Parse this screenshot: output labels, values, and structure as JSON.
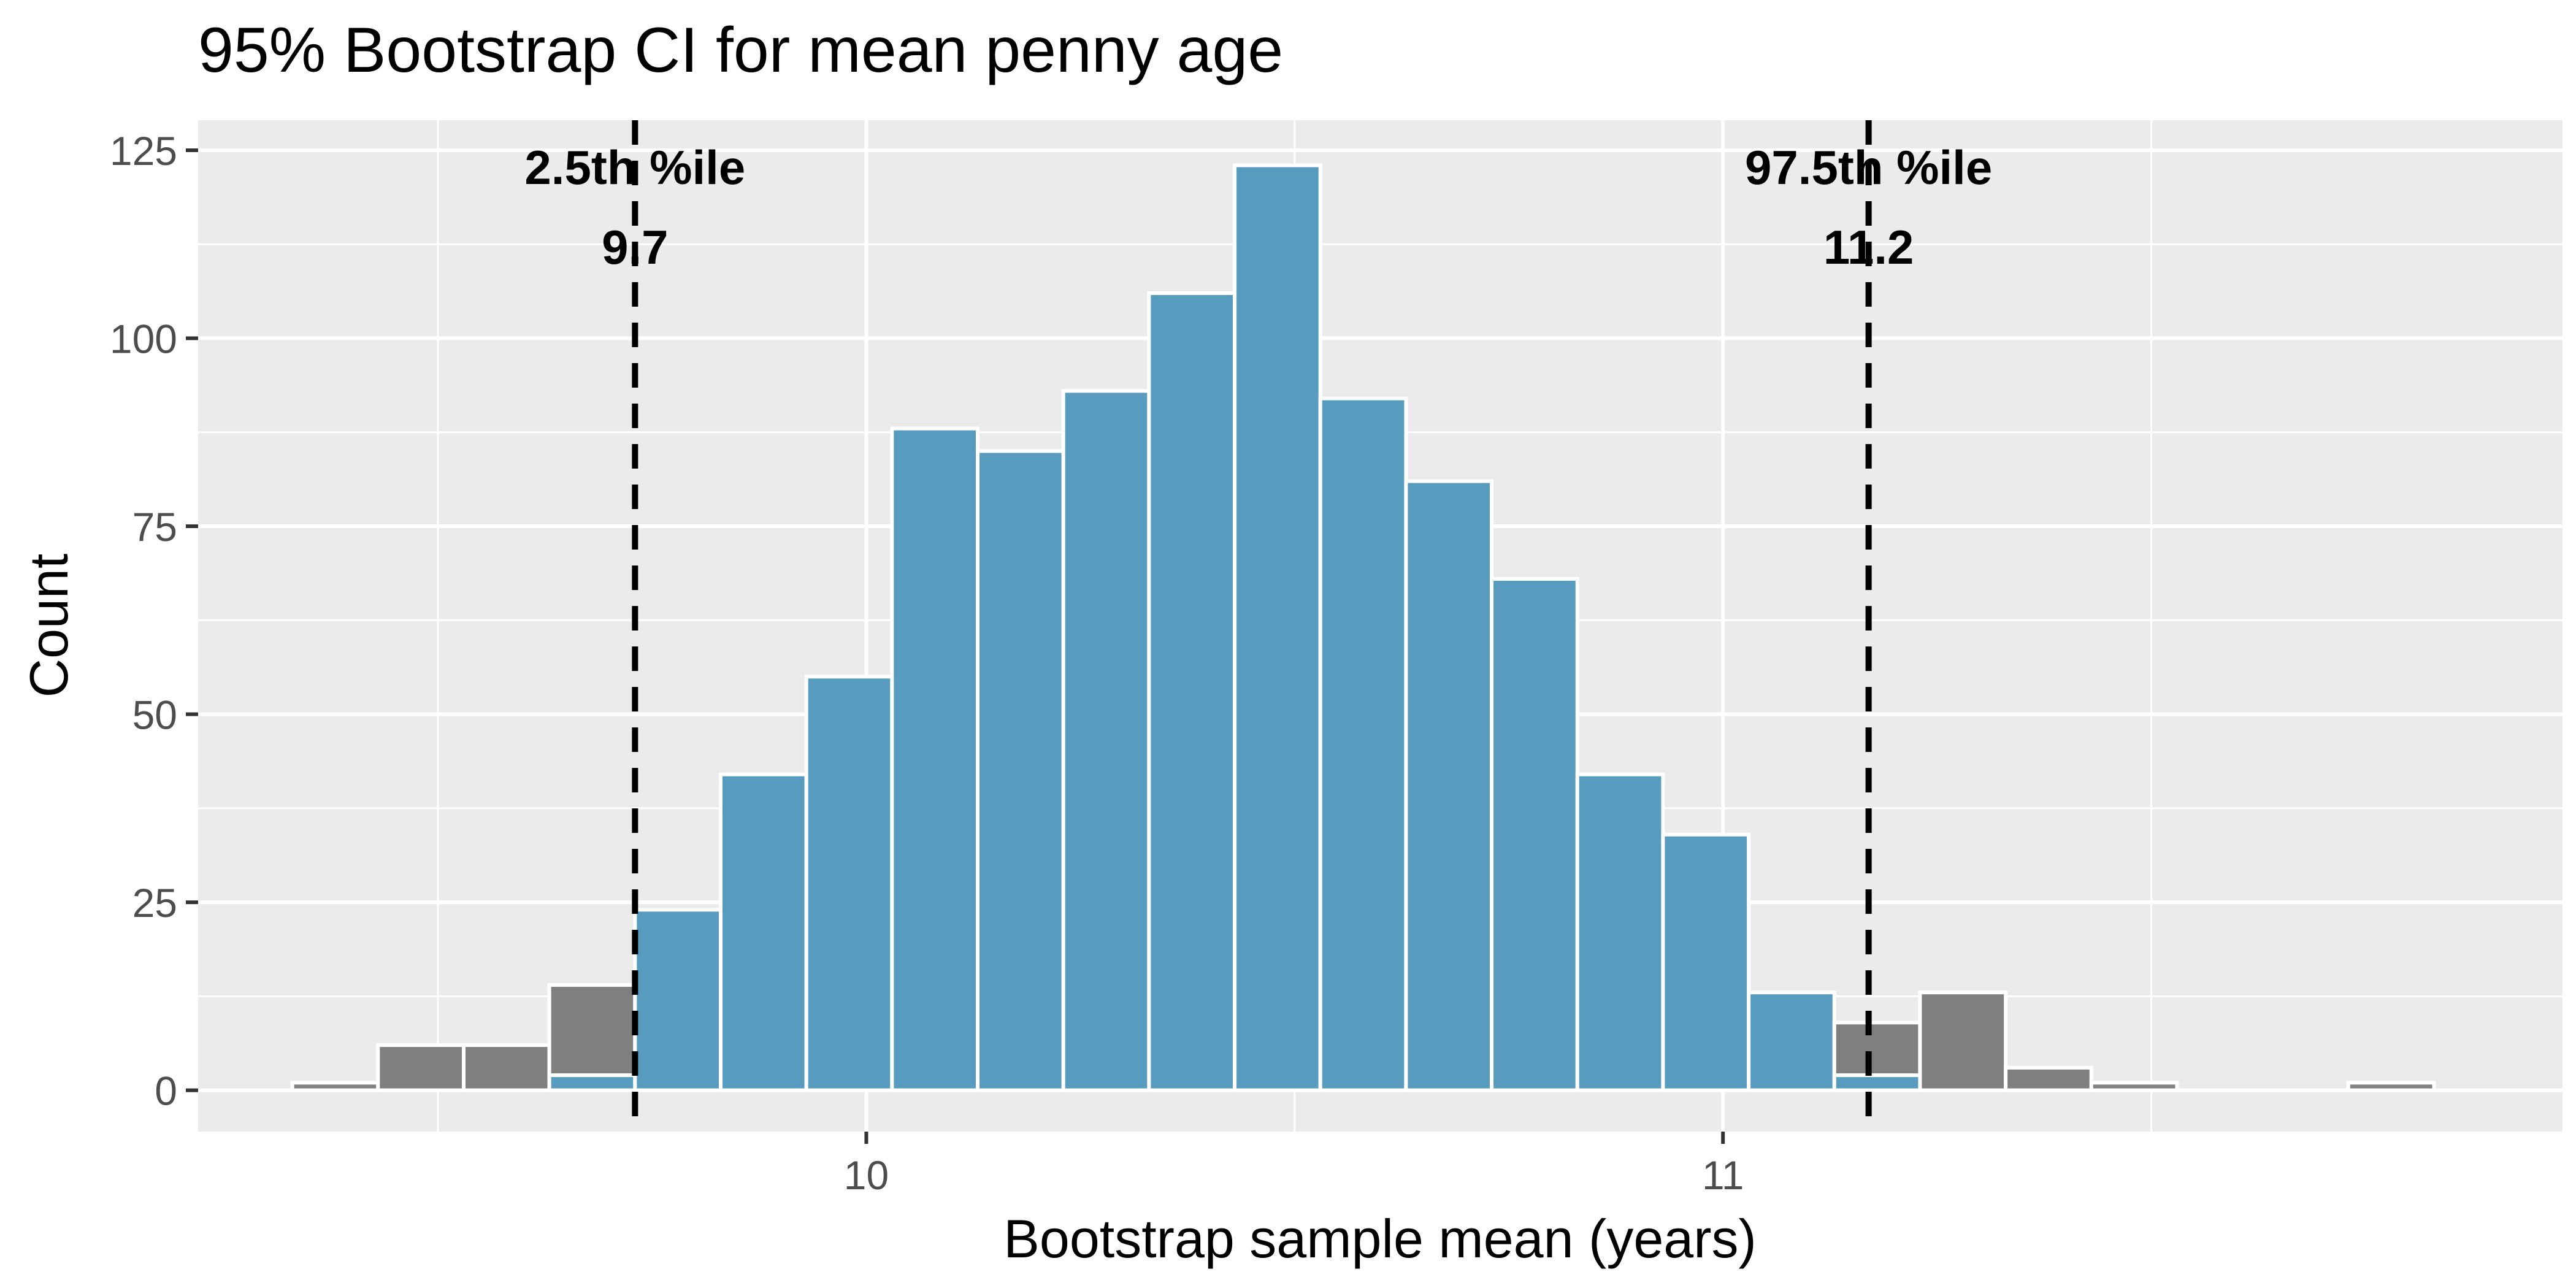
{
  "chart_data": {
    "type": "bar",
    "title": "95% Bootstrap CI for mean penny age",
    "xlabel": "Bootstrap sample mean (years)",
    "ylabel": "Count",
    "xlim": [
      9.22,
      11.98
    ],
    "ylim": [
      -5.5,
      129
    ],
    "x_ticks": [
      10,
      11
    ],
    "x_tick_labels": [
      "10",
      "11"
    ],
    "x_minor_ticks": [
      9.5,
      10.5,
      11.5
    ],
    "y_ticks": [
      0,
      25,
      50,
      75,
      100,
      125
    ],
    "y_tick_labels": [
      "0",
      "25",
      "50",
      "75",
      "100",
      "125"
    ],
    "grid": true,
    "legend": "none",
    "bin_width": 0.1,
    "bins": [
      {
        "x": 9.38,
        "outside": 1,
        "inside": 0
      },
      {
        "x": 9.48,
        "outside": 6,
        "inside": 0
      },
      {
        "x": 9.58,
        "outside": 6,
        "inside": 0
      },
      {
        "x": 9.68,
        "outside": 12,
        "inside": 2
      },
      {
        "x": 9.78,
        "outside": 0,
        "inside": 24
      },
      {
        "x": 9.88,
        "outside": 0,
        "inside": 42
      },
      {
        "x": 9.98,
        "outside": 0,
        "inside": 55
      },
      {
        "x": 10.08,
        "outside": 0,
        "inside": 88
      },
      {
        "x": 10.18,
        "outside": 0,
        "inside": 85
      },
      {
        "x": 10.28,
        "outside": 0,
        "inside": 93
      },
      {
        "x": 10.38,
        "outside": 0,
        "inside": 106
      },
      {
        "x": 10.48,
        "outside": 0,
        "inside": 123
      },
      {
        "x": 10.58,
        "outside": 0,
        "inside": 92
      },
      {
        "x": 10.68,
        "outside": 0,
        "inside": 81
      },
      {
        "x": 10.78,
        "outside": 0,
        "inside": 68
      },
      {
        "x": 10.88,
        "outside": 0,
        "inside": 42
      },
      {
        "x": 10.98,
        "outside": 0,
        "inside": 34
      },
      {
        "x": 11.08,
        "outside": 0,
        "inside": 13
      },
      {
        "x": 11.18,
        "outside": 7,
        "inside": 2
      },
      {
        "x": 11.28,
        "outside": 13,
        "inside": 0
      },
      {
        "x": 11.38,
        "outside": 3,
        "inside": 0
      },
      {
        "x": 11.48,
        "outside": 1,
        "inside": 0
      },
      {
        "x": 11.58,
        "outside": 0,
        "inside": 0
      },
      {
        "x": 11.68,
        "outside": 0,
        "inside": 0
      },
      {
        "x": 11.78,
        "outside": 1,
        "inside": 0
      }
    ],
    "percentile_lines": [
      {
        "value": 9.73,
        "label": "2.5th %ile",
        "value_label": "9.7",
        "x_text": 9.73
      },
      {
        "value": 11.17,
        "label": "97.5th %ile",
        "value_label": "11.2",
        "x_text": 11.17
      }
    ],
    "colors": {
      "inside": "#579BBE",
      "outside": "#7F7F7F",
      "panel": "#EBEBEB",
      "grid": "#FFFFFF",
      "bar_outline": "#FFFFFF",
      "line": "#000000"
    }
  }
}
